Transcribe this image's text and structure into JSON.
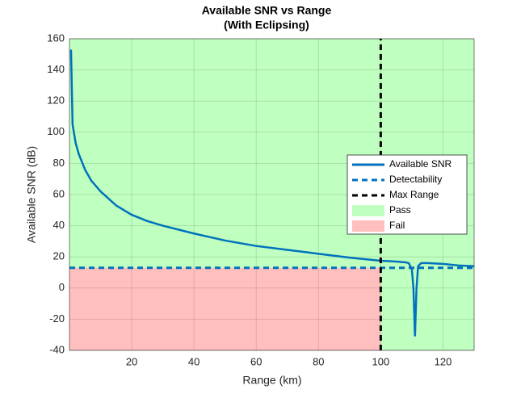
{
  "chart_data": {
    "type": "line",
    "title": "Available SNR vs Range",
    "subtitle": "(With Eclipsing)",
    "xlabel": "Range (km)",
    "ylabel": "Available SNR (dB)",
    "xlim": [
      0,
      130
    ],
    "xticks": [
      20,
      40,
      60,
      80,
      100,
      120
    ],
    "ylim": [
      -40,
      160
    ],
    "yticks": [
      -40,
      -20,
      0,
      20,
      40,
      60,
      80,
      100,
      120,
      140,
      160
    ],
    "grid": true,
    "legend": "right",
    "series": [
      {
        "name": "Available SNR",
        "color": "#0072bd",
        "style": "solid",
        "x": [
          0.5,
          1,
          2,
          3,
          5,
          7,
          10,
          15,
          20,
          25,
          30,
          40,
          50,
          60,
          70,
          80,
          90,
          100,
          105,
          108,
          109,
          110,
          110.5,
          111,
          111.5,
          112,
          113,
          115,
          120,
          125,
          130
        ],
        "values": [
          153,
          105,
          93,
          86,
          76,
          69,
          62,
          53,
          47,
          43,
          40,
          35,
          30.5,
          27,
          24.5,
          22,
          19.5,
          17.5,
          17,
          16.5,
          16,
          12,
          0,
          -31,
          0,
          14,
          16,
          16,
          15.5,
          14.5,
          14
        ]
      },
      {
        "name": "Detectability",
        "color": "#0072bd",
        "style": "dashed",
        "x": [
          0,
          130
        ],
        "values": [
          13,
          13
        ]
      },
      {
        "name": "Max Range",
        "color": "#000000",
        "style": "dashed",
        "x": [
          100,
          100
        ],
        "values": [
          -40,
          160
        ]
      }
    ],
    "regions": [
      {
        "name": "Pass",
        "color": "#bfffbf"
      },
      {
        "name": "Fail",
        "color": "#ffbfbf"
      }
    ]
  }
}
